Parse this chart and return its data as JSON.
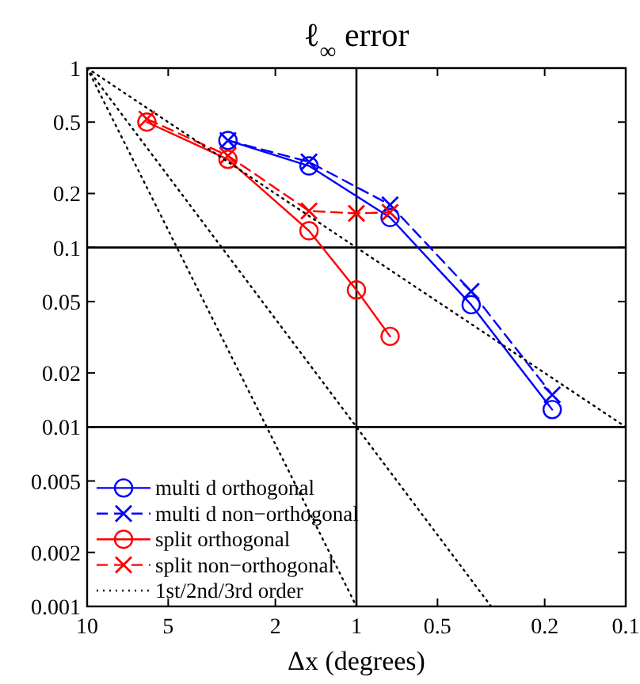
{
  "chart_data": {
    "type": "line",
    "title": "ℓ$_{∞}$ error",
    "xlabel": "Δx (degrees)",
    "log": "xy",
    "xlim": [
      10,
      0.1
    ],
    "ylim": [
      0.001,
      1
    ],
    "xticks": [
      10,
      5,
      2,
      1,
      0.5,
      0.2,
      0.1
    ],
    "yticks": [
      1,
      0.5,
      0.2,
      0.1,
      0.05,
      0.02,
      0.01,
      0.005,
      0.002,
      0.001
    ],
    "legend": "bottom left",
    "ref_lines": [
      {
        "axis": "y",
        "value": 0.1,
        "color": "#000000"
      },
      {
        "axis": "y",
        "value": 0.01,
        "color": "#000000"
      },
      {
        "axis": "x",
        "value": 1,
        "color": "#000000"
      }
    ],
    "series": [
      {
        "name": "multi d orthogonal",
        "color": "#0000ff",
        "marker": "circle",
        "line_style": "solid",
        "x": [
          3,
          1.5,
          0.75,
          0.375,
          0.1875
        ],
        "values": [
          0.395,
          0.285,
          0.147,
          0.048,
          0.0125
        ]
      },
      {
        "name": "multi d non−orthogonal",
        "color": "#0000ff",
        "marker": "cross",
        "line_style": "dashed",
        "x": [
          3,
          1.5,
          0.75,
          0.375,
          0.1875
        ],
        "values": [
          0.395,
          0.3,
          0.173,
          0.057,
          0.0151
        ]
      },
      {
        "name": "split orthogonal",
        "color": "#ff0000",
        "marker": "circle",
        "line_style": "solid",
        "x": [
          6,
          3,
          1.5,
          1,
          0.75
        ],
        "values": [
          0.5,
          0.31,
          0.124,
          0.058,
          0.032
        ]
      },
      {
        "name": "split non−orthogonal",
        "color": "#ff0000",
        "marker": "cross",
        "line_style": "dashed",
        "x": [
          6,
          3,
          1.5,
          1,
          0.75
        ],
        "values": [
          0.52,
          0.325,
          0.16,
          0.155,
          0.157
        ]
      },
      {
        "name": "1st/2nd/3rd order",
        "color": "#000000",
        "marker": "none",
        "line_style": "dotted",
        "x": [
          10,
          0.1
        ],
        "values": [
          1,
          0.01
        ]
      },
      {
        "color": "#000000",
        "marker": "none",
        "line_style": "dotted",
        "x": [
          10,
          0.316
        ],
        "values": [
          1,
          0.001
        ]
      },
      {
        "color": "#000000",
        "marker": "none",
        "line_style": "dotted",
        "x": [
          10,
          1
        ],
        "values": [
          1,
          0.001
        ]
      }
    ]
  }
}
